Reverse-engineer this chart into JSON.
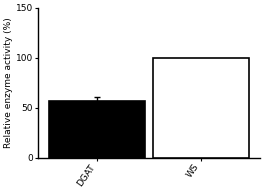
{
  "categories": [
    "DGAT",
    "WS"
  ],
  "values": [
    57,
    100
  ],
  "errors": [
    4,
    0
  ],
  "bar_colors": [
    "#000000",
    "#ffffff"
  ],
  "bar_edgecolors": [
    "#000000",
    "#000000"
  ],
  "ylabel": "Relative enzyme activity (%)",
  "ylim": [
    0,
    150
  ],
  "yticks": [
    0,
    50,
    100,
    150
  ],
  "background_color": "#ffffff",
  "bar_width": 0.65,
  "error_capsize": 2.5,
  "error_color": "#000000",
  "label_fontsize": 6.5,
  "tick_fontsize": 6.5,
  "ylabel_fontsize": 6.5,
  "x_positions": [
    0.3,
    1.0
  ]
}
